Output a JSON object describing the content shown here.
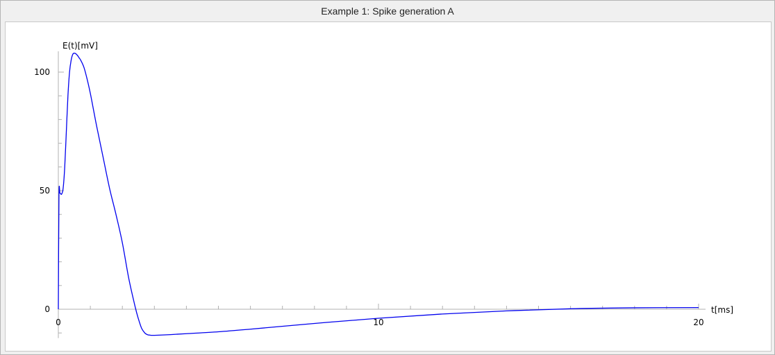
{
  "window": {
    "title": "Example 1: Spike generation A"
  },
  "chart_data": {
    "type": "line",
    "title": "",
    "xlabel": "t[ms]",
    "ylabel": "E(t)[mV]",
    "xlim": [
      0,
      20
    ],
    "ylim": [
      -11,
      108
    ],
    "x_ticks": [
      0,
      10,
      20
    ],
    "x_tick_labels": [
      "0",
      "10",
      "20"
    ],
    "y_ticks": [
      0,
      50,
      100
    ],
    "y_tick_labels": [
      "0",
      "50",
      "100"
    ],
    "x_minor_step": 1,
    "y_minor_step": 10,
    "grid": false,
    "line_color": "#0000ee",
    "series": [
      {
        "x": [
          0,
          0.02,
          0.05,
          0.1,
          0.15,
          0.2,
          0.25,
          0.3,
          0.35,
          0.4,
          0.45,
          0.5,
          0.55,
          0.6,
          0.65,
          0.7,
          0.8,
          0.9,
          1.0,
          1.1,
          1.2,
          1.4,
          1.6,
          1.8,
          2.0,
          2.2,
          2.4,
          2.5,
          2.6,
          2.7,
          2.75,
          2.8,
          2.85,
          2.9,
          3.0,
          3.2,
          3.5,
          4.0,
          5.0,
          6.0,
          8.0,
          10.0,
          12.0,
          14.0,
          16.0,
          18.0,
          20.0
        ],
        "y": [
          0,
          48,
          49,
          48.5,
          51,
          60,
          75,
          90,
          100,
          105,
          107.5,
          108,
          107.7,
          107,
          106,
          105,
          102,
          97,
          91,
          84,
          77,
          64,
          51,
          40,
          28,
          13,
          1,
          -4,
          -8,
          -10,
          -10.5,
          -10.8,
          -10.9,
          -11,
          -11,
          -10.9,
          -10.7,
          -10.3,
          -9.5,
          -8.4,
          -6,
          -3.8,
          -2,
          -0.7,
          0.2,
          0.6,
          0.7
        ]
      }
    ]
  }
}
